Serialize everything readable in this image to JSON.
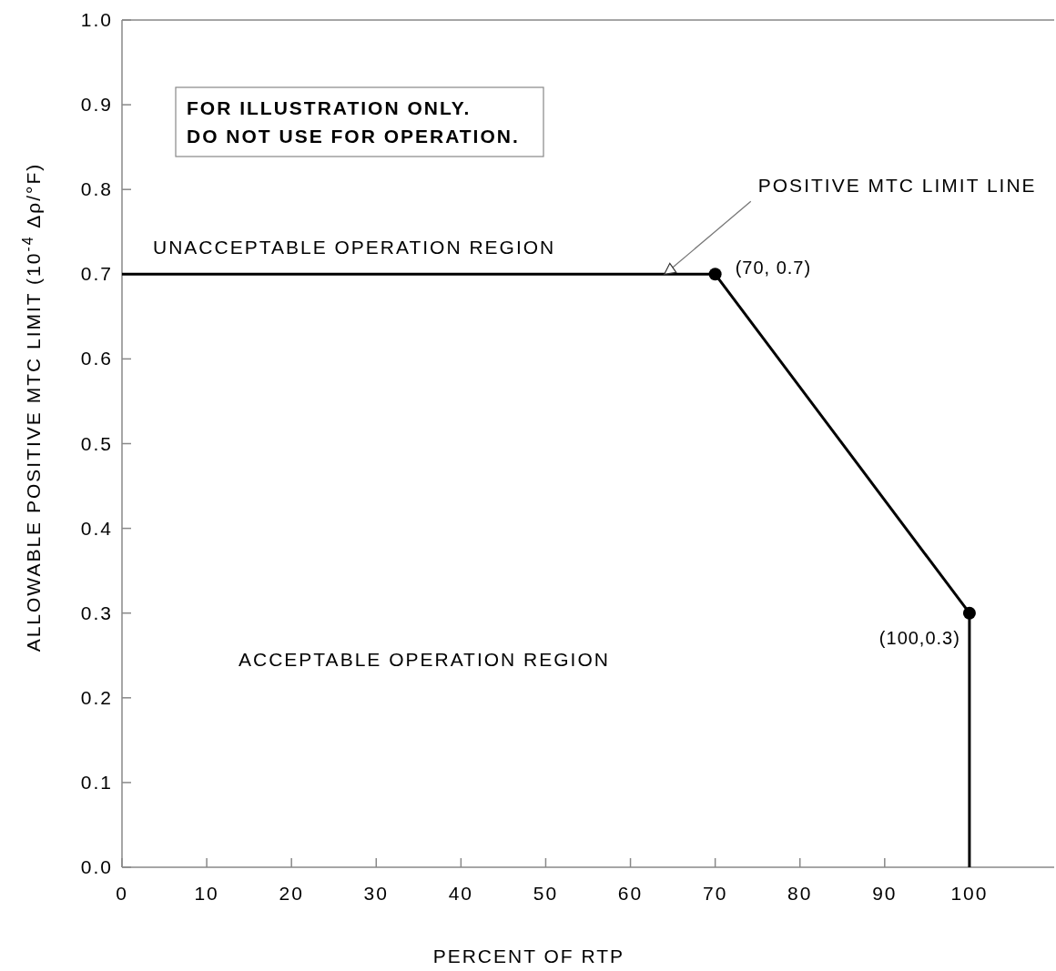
{
  "chart_data": {
    "type": "line",
    "xlabel": "PERCENT OF RTP",
    "ylabel": "ALLOWABLE POSITIVE MTC LIMIT (10$^{-4}$ Δρ/°F)",
    "xlim": [
      0,
      110
    ],
    "xticks": [
      0,
      10,
      20,
      30,
      40,
      50,
      60,
      70,
      80,
      90,
      100
    ],
    "ylim": [
      0,
      1
    ],
    "yticks": [
      {
        "value": 0,
        "label": "0.0"
      },
      0.1,
      0.2,
      0.3,
      0.4,
      0.5,
      0.6,
      0.7,
      0.8,
      0.9,
      {
        "value": 1,
        "label": "1.0"
      }
    ],
    "grid": false,
    "line_style": "solid",
    "series": [
      {
        "color": "#000000",
        "marker": "none",
        "x": [
          0,
          70,
          100,
          100
        ],
        "values": [
          0.7,
          0.7,
          0.3,
          0
        ]
      },
      {
        "type": "scatter",
        "color": "#000000",
        "marker": "circle",
        "x": [
          70,
          100
        ],
        "values": [
          0.7,
          0.3
        ]
      }
    ],
    "annotations": [
      "FOR ILLUSTRATION ONLY.\nDO NOT USE FOR OPERATION.",
      "UNACCEPTABLE OPERATION REGION",
      "ACCEPTABLE OPERATION REGION",
      {
        "text": "POSITIVE MTC LIMIT LINE",
        "x": 64,
        "y": 0.7
      },
      {
        "text": "(70, 0.7)",
        "x": 70,
        "y": 0.7
      },
      {
        "text": "(100,0.3)",
        "x": 100,
        "y": 0.3
      }
    ]
  }
}
